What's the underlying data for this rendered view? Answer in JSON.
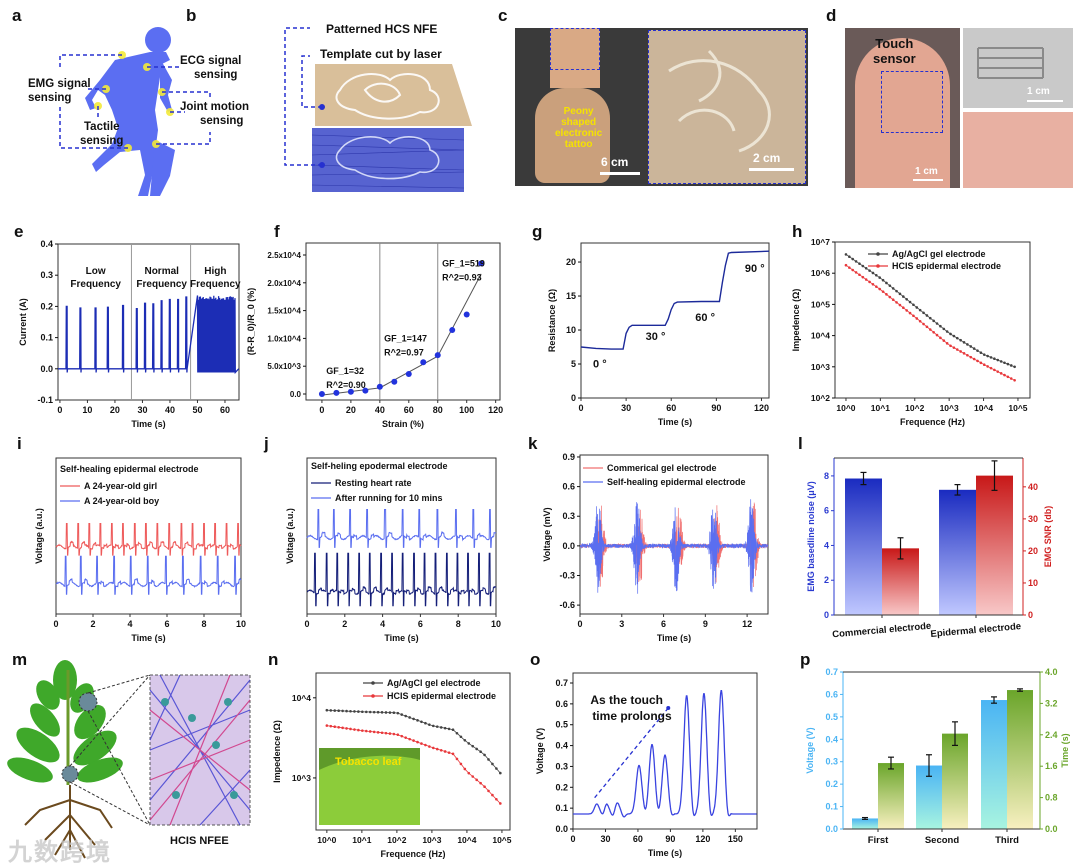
{
  "panel_labels": {
    "a": "a",
    "b": "b",
    "c": "c",
    "d": "d",
    "e": "e",
    "f": "f",
    "g": "g",
    "h": "h",
    "i": "i",
    "j": "j",
    "k": "k",
    "l": "l",
    "m": "m",
    "n": "n",
    "o": "o",
    "p": "p"
  },
  "panel_a": {
    "ecg": [
      "ECG signal",
      "sensing"
    ],
    "emg": [
      "EMG signal",
      "sensing"
    ],
    "tactile": [
      "Tactile",
      "sensing"
    ],
    "joint": [
      "Joint motion",
      "sensing"
    ]
  },
  "panel_b": {
    "top_label": "Patterned HCS NFE",
    "mid_label": "Template cut by laser"
  },
  "panel_c": {
    "tattoo_label": [
      "Peony",
      "shaped",
      "electronic",
      "tattoo"
    ],
    "scale_left": "6 cm",
    "scale_right": "2 cm"
  },
  "panel_d": {
    "sensor_label": [
      "Touch",
      "sensor"
    ],
    "scale_top": "1 cm",
    "scale_bottom": "1 cm"
  },
  "panel_m": {
    "caption": "HCIS NFEE"
  },
  "panel_n": {
    "inset_label": "Tobacco leaf"
  },
  "watermark": "九数跨境",
  "chart_data": [
    {
      "id": "e",
      "type": "line",
      "title": "",
      "xlabel": "Time (s)",
      "ylabel": "Current (A)",
      "xlim": [
        -0.7,
        65.1
      ],
      "ylim": [
        -0.1,
        0.4
      ],
      "xticks": [
        0,
        10,
        20,
        30,
        40,
        50,
        60
      ],
      "xtick_labels": [
        "0",
        "10",
        "20",
        "30",
        "40",
        "50",
        "60"
      ],
      "yticks": [
        -0.1,
        0,
        0.1,
        0.2,
        0.3,
        0.4
      ],
      "ytick_labels": [
        "-0.1",
        "0.0",
        "0.1",
        "0.2",
        "0.3",
        "0.4"
      ],
      "dividers": [
        26,
        47.5
      ],
      "region_labels": [
        [
          "Low",
          "Frequency"
        ],
        [
          "Normal",
          "Frequency"
        ],
        [
          "High",
          "Frequency"
        ]
      ],
      "series": [
        {
          "name": "Current",
          "color": "#1c2db5",
          "pulse_times": [
            2.5,
            7.5,
            13,
            17.5,
            23,
            28,
            31,
            34,
            37,
            40,
            43,
            46
          ],
          "pulse_peaks": [
            0.2,
            0.195,
            0.195,
            0.197,
            0.203,
            0.193,
            0.21,
            0.208,
            0.218,
            0.222,
            0.222,
            0.23
          ],
          "dense_range": [
            50,
            64
          ],
          "dense_peak": 0.235,
          "baseline": 0,
          "trough": -0.012
        }
      ]
    },
    {
      "id": "f",
      "type": "scatter",
      "xlabel": "Strain (%)",
      "ylabel": "(R-R_0)/R_0 (%)",
      "xlim": [
        -11,
        123
      ],
      "ylim": [
        -1080,
        27160
      ],
      "xticks": [
        0,
        20,
        40,
        60,
        80,
        100,
        120
      ],
      "xtick_labels": [
        "0",
        "20",
        "40",
        "60",
        "80",
        "100",
        "120"
      ],
      "yticks": [
        0,
        5000,
        10000,
        15000,
        20000,
        25000
      ],
      "ytick_labels": [
        "0.0",
        "5.0x10^3",
        "1.0x10^4",
        "1.5x10^4",
        "2.0x10^4",
        "2.5x10^4"
      ],
      "dividers": [
        40,
        80
      ],
      "x": [
        0,
        10,
        20,
        30,
        40,
        50,
        60,
        70,
        80,
        90,
        100,
        110
      ],
      "y": [
        0,
        200,
        400,
        600,
        1300,
        2200,
        3600,
        5700,
        7000,
        11500,
        14300,
        23500
      ],
      "fit": {
        "x": [
          0,
          40,
          80,
          110
        ],
        "y": [
          -200,
          1100,
          6800,
          21600
        ]
      },
      "annotations": [
        {
          "lines": [
            "GF_1=32",
            "R^2=0.90"
          ],
          "x": 3,
          "y": 3600
        },
        {
          "lines": [
            "GF_1=147",
            "R^2=0.97"
          ],
          "x": 43,
          "y": 9400
        },
        {
          "lines": [
            "GF_1=519",
            "R^2=0.93"
          ],
          "x": 83,
          "y": 22900
        }
      ],
      "color": "#2233dd"
    },
    {
      "id": "g",
      "type": "line",
      "xlabel": "Time (s)",
      "ylabel": "Resistance (Ω)",
      "xlim": [
        0,
        125
      ],
      "ylim": [
        0,
        22.8
      ],
      "xticks": [
        0,
        30,
        60,
        90,
        120
      ],
      "xtick_labels": [
        "0",
        "30",
        "60",
        "90",
        "120"
      ],
      "yticks": [
        0,
        5,
        10,
        15,
        20
      ],
      "ytick_labels": [
        "0",
        "5",
        "10",
        "15",
        "20"
      ],
      "series": [
        {
          "name": "Resistance",
          "color": "#1c2a9a",
          "x": [
            0,
            10,
            20,
            28,
            30,
            32,
            34,
            45,
            56,
            58,
            60,
            62,
            64,
            80,
            92,
            94,
            96,
            98,
            100,
            125
          ],
          "y": [
            7.5,
            7.3,
            7.2,
            7.2,
            9.5,
            10.4,
            10.7,
            10.7,
            10.7,
            11.6,
            13,
            13.9,
            14.1,
            14.2,
            14.2,
            17,
            19.5,
            21.3,
            21.4,
            21.6
          ]
        }
      ],
      "annotations": [
        {
          "text": "0 °",
          "x": 8,
          "y": 4.5
        },
        {
          "text": "30 °",
          "x": 43,
          "y": 8.5
        },
        {
          "text": "60 °",
          "x": 76,
          "y": 11.3
        },
        {
          "text": "90 °",
          "x": 109,
          "y": 18.5
        }
      ]
    },
    {
      "id": "h",
      "type": "line",
      "xscale": "log",
      "yscale": "log",
      "xlabel": "Frequence (Hz)",
      "ylabel": "Impedence (Ω)",
      "xlim": [
        0.48,
        224000
      ],
      "ylim": [
        100,
        10000000
      ],
      "xticks": [
        1,
        10,
        100,
        1000,
        10000,
        100000
      ],
      "xtick_labels": [
        "10^0",
        "10^1",
        "10^2",
        "10^3",
        "10^4",
        "10^5"
      ],
      "yticks": [
        100,
        1000,
        10000,
        100000,
        1000000,
        10000000
      ],
      "ytick_labels": [
        "10^2",
        "10^3",
        "10^4",
        "10^5",
        "10^6",
        "10^7"
      ],
      "legend": "top-right",
      "series": [
        {
          "name": "Ag/AgCl gel electrode",
          "color": "#444444",
          "x": [
            1,
            10,
            100,
            1000,
            10000,
            80000
          ],
          "y": [
            4000000,
            700000,
            90000,
            12000,
            2500,
            1000
          ]
        },
        {
          "name": "HCIS epidermal electrode",
          "color": "#e8383b",
          "x": [
            1,
            10,
            100,
            1000,
            10000,
            80000
          ],
          "y": [
            1800000,
            300000,
            40000,
            5000,
            1200,
            370
          ]
        }
      ]
    },
    {
      "id": "i",
      "type": "line",
      "xlabel": "Time (s)",
      "ylabel": "Voltage (a.u.)",
      "xlim": [
        0,
        10
      ],
      "ylim": [
        0,
        1
      ],
      "xticks": [
        0,
        2,
        4,
        6,
        8,
        10
      ],
      "xtick_labels": [
        "0",
        "2",
        "4",
        "6",
        "8",
        "10"
      ],
      "legend_title": "Self-healing epidermal electrode",
      "series": [
        {
          "name": "A 24-year-old girl",
          "color": "#ee5a5a",
          "baseline": 0.43,
          "amp": 0.15,
          "peak_times": [
            0.58,
            1.2,
            1.8,
            2.4,
            3.02,
            3.63,
            4.25,
            4.86,
            5.47,
            6.12,
            6.77,
            7.38,
            7.99,
            8.6,
            9.22,
            9.84
          ]
        },
        {
          "name": "A 24-year-old boy",
          "color": "#5a6ef0",
          "baseline": 0.19,
          "amp": 0.18,
          "peak_times": [
            0.52,
            1.35,
            2.23,
            3.15,
            4.05,
            4.96,
            5.93,
            6.85,
            7.82,
            8.74,
            9.68
          ]
        }
      ]
    },
    {
      "id": "j",
      "type": "line",
      "xlabel": "Time (s)",
      "ylabel": "Voltage (a.u.)",
      "xlim": [
        0,
        10
      ],
      "ylim": [
        0,
        1
      ],
      "xticks": [
        0,
        2,
        4,
        6,
        8,
        10
      ],
      "xtick_labels": [
        "0",
        "2",
        "4",
        "6",
        "8",
        "10"
      ],
      "legend_title": "Self-heling epodermal electrode",
      "series": [
        {
          "name": "Resting heart rate",
          "color": "#141e78",
          "baseline": 0.14,
          "amp": 0.25,
          "peak_times": [
            0.42,
            1.04,
            1.6,
            2.19,
            2.77,
            3.33,
            3.92,
            4.5,
            5.06,
            5.65,
            6.21,
            6.79,
            7.39,
            7.95,
            8.52,
            9.1,
            9.65
          ]
        },
        {
          "name": "After running for 10 mins",
          "color": "#5a6ef0",
          "baseline": 0.49,
          "amp": 0.18,
          "peak_times": [
            0.6,
            1.43,
            2.28,
            3.19,
            4.13,
            5.06,
            5.94,
            6.9,
            7.87,
            8.8,
            9.68
          ]
        }
      ]
    },
    {
      "id": "k",
      "type": "line",
      "xlabel": "Time (s)",
      "ylabel": "Voltage (mV)",
      "xlim": [
        0,
        13.5
      ],
      "ylim": [
        -0.69,
        0.92
      ],
      "xticks": [
        0,
        3,
        6,
        9,
        12
      ],
      "xtick_labels": [
        "0",
        "3",
        "6",
        "9",
        "12"
      ],
      "yticks": [
        -0.6,
        -0.3,
        0,
        0.3,
        0.6,
        0.9
      ],
      "ytick_labels": [
        "-0.6",
        "-0.3",
        "0.0",
        "0.3",
        "0.6",
        "0.9"
      ],
      "legend": "top-left",
      "series": [
        {
          "name": "Commerical gel electrode",
          "color": "#f07070",
          "burst_centers": [
            1.5,
            4.3,
            7.1,
            9.8,
            12.5
          ],
          "amp": 0.42
        },
        {
          "name": "Self-healing epidermal electrode",
          "color": "#5a6ef0",
          "burst_centers": [
            1.3,
            4.1,
            6.9,
            9.6,
            12.3
          ],
          "amp": 0.48
        }
      ]
    },
    {
      "id": "l",
      "type": "bar",
      "xlabel": "",
      "ylabel": "EMG basedline noise (μV)",
      "ylabel_right": "EMG SNR (db)",
      "categories": [
        "Commercial electrode",
        "Epidermal electrode"
      ],
      "ylim": [
        0,
        9.03
      ],
      "ylim_right": [
        0,
        49
      ],
      "yticks": [
        0,
        2,
        4,
        6,
        8
      ],
      "ytick_labels": [
        "0",
        "2",
        "4",
        "6",
        "8"
      ],
      "yticks_right": [
        0,
        10,
        20,
        30,
        40
      ],
      "ytick_labels_right": [
        "0",
        "10",
        "20",
        "30",
        "40"
      ],
      "series": [
        {
          "name": "EMG baseline noise",
          "axis": "left",
          "color": "#1a2bc0",
          "values": [
            7.85,
            7.2
          ],
          "errors": [
            0.35,
            0.3
          ]
        },
        {
          "name": "EMG SNR",
          "axis": "right",
          "color": "#c81818",
          "values": [
            20.8,
            43.5
          ],
          "errors": [
            3.3,
            4.6
          ]
        }
      ]
    },
    {
      "id": "n",
      "type": "line",
      "xscale": "log",
      "yscale": "log",
      "xlabel": "Frequence (Hz)",
      "ylabel": "Impedence (Ω)",
      "xlim": [
        0.49,
        170000
      ],
      "ylim": [
        224,
        20400
      ],
      "xticks": [
        1,
        10,
        100,
        1000,
        10000,
        100000
      ],
      "xtick_labels": [
        "10^0",
        "10^1",
        "10^2",
        "10^3",
        "10^4",
        "10^5"
      ],
      "yticks": [
        1000,
        10000
      ],
      "ytick_labels": [
        "10^3",
        "10^4"
      ],
      "legend": "top-right",
      "series": [
        {
          "name": "Ag/AgCl gel electrode",
          "color": "#444444",
          "x": [
            1,
            10,
            100,
            1000,
            4000,
            10000,
            30000,
            90000
          ],
          "y": [
            7000,
            6700,
            6500,
            4500,
            4000,
            2800,
            2000,
            1150
          ]
        },
        {
          "name": "HCIS epidermal electrode",
          "color": "#e8383b",
          "x": [
            1,
            10,
            100,
            1000,
            4000,
            10000,
            30000,
            90000
          ],
          "y": [
            4500,
            3900,
            3500,
            2400,
            2000,
            1200,
            800,
            480
          ]
        }
      ]
    },
    {
      "id": "o",
      "type": "line",
      "xlabel": "Time (s)",
      "ylabel": "Voltage (V)",
      "xlim": [
        0,
        170
      ],
      "ylim": [
        0,
        0.748
      ],
      "xticks": [
        0,
        30,
        60,
        90,
        120,
        150
      ],
      "xtick_labels": [
        "0",
        "30",
        "60",
        "90",
        "120",
        "150"
      ],
      "yticks": [
        0,
        0.1,
        0.2,
        0.3,
        0.4,
        0.5,
        0.6,
        0.7
      ],
      "ytick_labels": [
        "0.0",
        "0.1",
        "0.2",
        "0.3",
        "0.4",
        "0.5",
        "0.6",
        "0.7"
      ],
      "annotation": [
        "As the touch",
        "time prolongs"
      ],
      "series": [
        {
          "name": "Voltage",
          "color": "#3a44e0",
          "baseline": 0.072,
          "peak_times": [
            22,
            31,
            41,
            61,
            73,
            85,
            105,
            121,
            137
          ],
          "peak_values": [
            0.12,
            0.12,
            0.125,
            0.305,
            0.405,
            0.355,
            0.64,
            0.65,
            0.665
          ]
        }
      ]
    },
    {
      "id": "p",
      "type": "bar",
      "xlabel": "",
      "ylabel": "Voltage (V)",
      "ylabel_right": "Time (s)",
      "categories": [
        "First",
        "Second",
        "Third"
      ],
      "ylim": [
        0,
        0.7
      ],
      "ylim_right": [
        0,
        4.0
      ],
      "yticks": [
        0,
        0.1,
        0.2,
        0.3,
        0.4,
        0.5,
        0.6,
        0.7
      ],
      "ytick_labels": [
        "0.0",
        "0.1",
        "0.2",
        "0.3",
        "0.4",
        "0.5",
        "0.6",
        "0.7"
      ],
      "yticks_right": [
        0,
        0.8,
        1.6,
        2.4,
        3.2,
        4.0
      ],
      "ytick_labels_right": [
        "0.0",
        "0.8",
        "1.6",
        "2.4",
        "3.2",
        "4.0"
      ],
      "series": [
        {
          "name": "Voltage",
          "axis": "left",
          "color": "#4ab4f4",
          "values": [
            0.047,
            0.283,
            0.575
          ],
          "errors": [
            0.004,
            0.048,
            0.014
          ]
        },
        {
          "name": "Time",
          "axis": "right",
          "color": "#6aa52a",
          "values": [
            1.68,
            2.43,
            3.54
          ],
          "errors": [
            0.15,
            0.3,
            0.03
          ]
        }
      ]
    }
  ]
}
